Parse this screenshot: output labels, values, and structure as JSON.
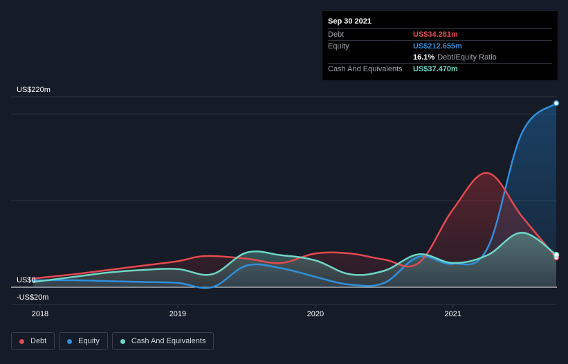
{
  "tooltip": {
    "date": "Sep 30 2021",
    "rows": [
      {
        "label": "Debt",
        "value": "US$34.281m"
      },
      {
        "label": "Equity",
        "value": "US$212.655m"
      },
      {
        "ratio_value": "16.1%",
        "ratio_label": "Debt/Equity Ratio"
      },
      {
        "label": "Cash And Equivalents",
        "value": "US$37.470m"
      }
    ]
  },
  "colors": {
    "background": "#151b27",
    "debt": "#e34a4f",
    "equity": "#2f8fdc",
    "cash": "#6fd7c6",
    "grid": "#3a3f47"
  },
  "legend": [
    {
      "label": "Debt",
      "color": "#e34a4f"
    },
    {
      "label": "Equity",
      "color": "#2f8fdc"
    },
    {
      "label": "Cash And Equivalents",
      "color": "#6fd7c6"
    }
  ],
  "chart_data": {
    "type": "area",
    "y_tick_labels": [
      "US$220m",
      "US$0",
      "-US$20m"
    ],
    "x_tick_labels": [
      "2018",
      "2019",
      "2020",
      "2021"
    ],
    "ylim": [
      -20,
      220
    ],
    "xlim": [
      2017.95,
      2021.75
    ],
    "grid": true,
    "legend_position": "bottom-left",
    "series": [
      {
        "name": "Debt",
        "x": [
          2017.95,
          2018.25,
          2018.5,
          2018.75,
          2019.0,
          2019.2,
          2019.5,
          2019.75,
          2020.0,
          2020.25,
          2020.5,
          2020.75,
          2021.0,
          2021.25,
          2021.5,
          2021.75
        ],
        "y": [
          10,
          15,
          20,
          25,
          30,
          36,
          33,
          28,
          39,
          39,
          32,
          28,
          90,
          132,
          82,
          34.281
        ]
      },
      {
        "name": "Equity",
        "x": [
          2017.95,
          2018.25,
          2018.5,
          2018.75,
          2019.0,
          2019.25,
          2019.5,
          2019.75,
          2020.0,
          2020.25,
          2020.5,
          2020.75,
          2021.0,
          2021.25,
          2021.5,
          2021.75
        ],
        "y": [
          8,
          8,
          7,
          6,
          5,
          0,
          25,
          22,
          12,
          3,
          5,
          35,
          27,
          45,
          178,
          212.655
        ]
      },
      {
        "name": "Cash And Equivalents",
        "x": [
          2017.95,
          2018.25,
          2018.5,
          2018.75,
          2019.0,
          2019.25,
          2019.5,
          2019.75,
          2020.0,
          2020.25,
          2020.5,
          2020.75,
          2021.0,
          2021.25,
          2021.5,
          2021.75
        ],
        "y": [
          6,
          12,
          17,
          20,
          21,
          15,
          40,
          37,
          31,
          15,
          19,
          38,
          28,
          37,
          63,
          37.47
        ]
      }
    ]
  }
}
